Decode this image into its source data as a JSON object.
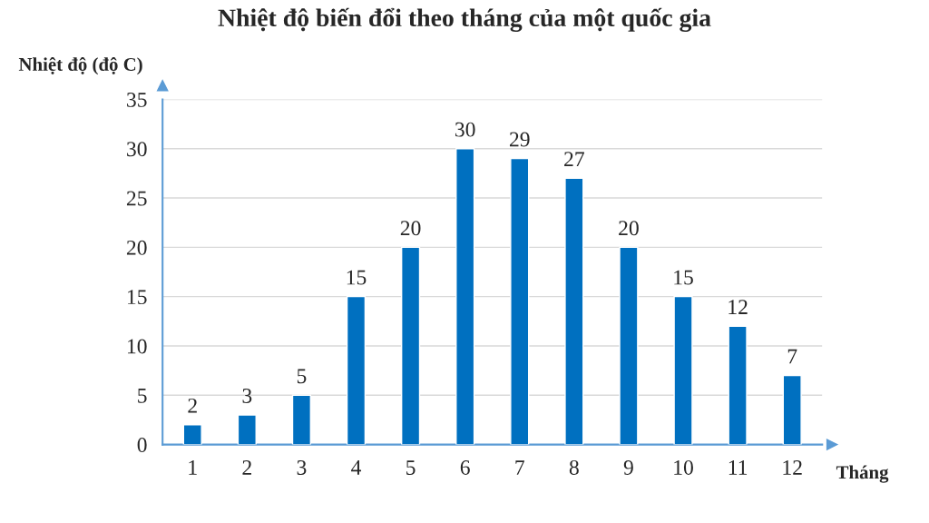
{
  "chart_data": {
    "type": "bar",
    "title": "Nhiệt độ biến đổi theo tháng của một quốc gia",
    "ylabel": "Nhiệt độ (độ C)",
    "xlabel": "Tháng",
    "categories": [
      "1",
      "2",
      "3",
      "4",
      "5",
      "6",
      "7",
      "8",
      "9",
      "10",
      "11",
      "12"
    ],
    "values": [
      2,
      3,
      5,
      15,
      20,
      30,
      29,
      27,
      20,
      15,
      12,
      7
    ],
    "color": "#0070c0",
    "ylim": [
      0,
      35
    ],
    "yticks": [
      0,
      5,
      10,
      15,
      20,
      25,
      30,
      35
    ],
    "grid": "y",
    "data_labels": true
  }
}
